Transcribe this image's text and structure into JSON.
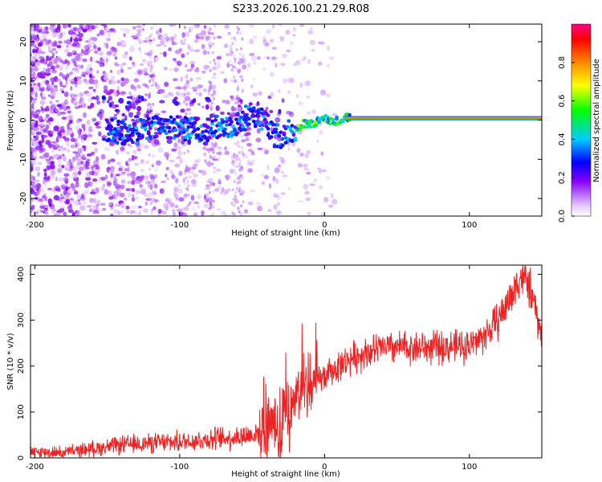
{
  "title": "S233.2026.100.21.29.R08",
  "chart_data": [
    {
      "type": "heatmap",
      "xlabel": "Height of straight line (km)",
      "ylabel": "Frequency (Hz)",
      "xlim": [
        -203,
        150
      ],
      "ylim": [
        -24.5,
        24.5
      ],
      "xticks": [
        -200,
        -100,
        0,
        100
      ],
      "yticks": [
        -20,
        -10,
        0,
        10,
        20
      ],
      "colorbar": {
        "label": "Normalized spectral amplitude",
        "range": [
          0,
          1
        ],
        "ticks": [
          "0.0",
          "0.2",
          "0.4",
          "0.6",
          "0.8"
        ],
        "tick_values": [
          0,
          0.2,
          0.4,
          0.6,
          0.8
        ]
      },
      "ridge": {
        "description": "narrow high-amplitude line near 0 Hz above ~15 km, scattered low-amplitude noise below",
        "frequency_hz": [
          [
            -150,
            -3
          ],
          [
            -130,
            -3
          ],
          [
            -110,
            -1.5
          ],
          [
            -90,
            -2.5
          ],
          [
            -75,
            -2
          ],
          [
            -60,
            -1
          ],
          [
            -50,
            2
          ],
          [
            -40,
            -1
          ],
          [
            -35,
            -4
          ],
          [
            -28,
            -4
          ],
          [
            -25,
            -2.5
          ],
          [
            -20,
            -3
          ],
          [
            -15,
            -1
          ],
          [
            -8,
            -1
          ],
          [
            -2,
            1
          ],
          [
            5,
            -0.5
          ],
          [
            15,
            0.5
          ],
          [
            150,
            0.5
          ]
        ]
      }
    },
    {
      "type": "line",
      "xlabel": "Height of straight line (km)",
      "ylabel": "SNR (10 * v/v)",
      "xlim": [
        -203,
        150
      ],
      "ylim": [
        0,
        420
      ],
      "xticks": [
        -200,
        -100,
        0,
        100
      ],
      "yticks": [
        0,
        100,
        200,
        300,
        400
      ],
      "color": "#ff2222",
      "series": [
        {
          "name": "SNR",
          "x": [
            -203,
            -180,
            -160,
            -140,
            -120,
            -100,
            -80,
            -60,
            -50,
            -40,
            -35,
            -30,
            -28,
            -25,
            -20,
            -15,
            -10,
            -5,
            0,
            10,
            20,
            30,
            40,
            60,
            80,
            100,
            110,
            120,
            130,
            135,
            140,
            145,
            150
          ],
          "values": [
            12,
            12,
            20,
            28,
            32,
            35,
            40,
            45,
            50,
            60,
            75,
            30,
            100,
            90,
            140,
            150,
            160,
            170,
            175,
            200,
            220,
            230,
            240,
            240,
            240,
            245,
            265,
            300,
            360,
            395,
            385,
            330,
            260
          ]
        }
      ]
    }
  ]
}
